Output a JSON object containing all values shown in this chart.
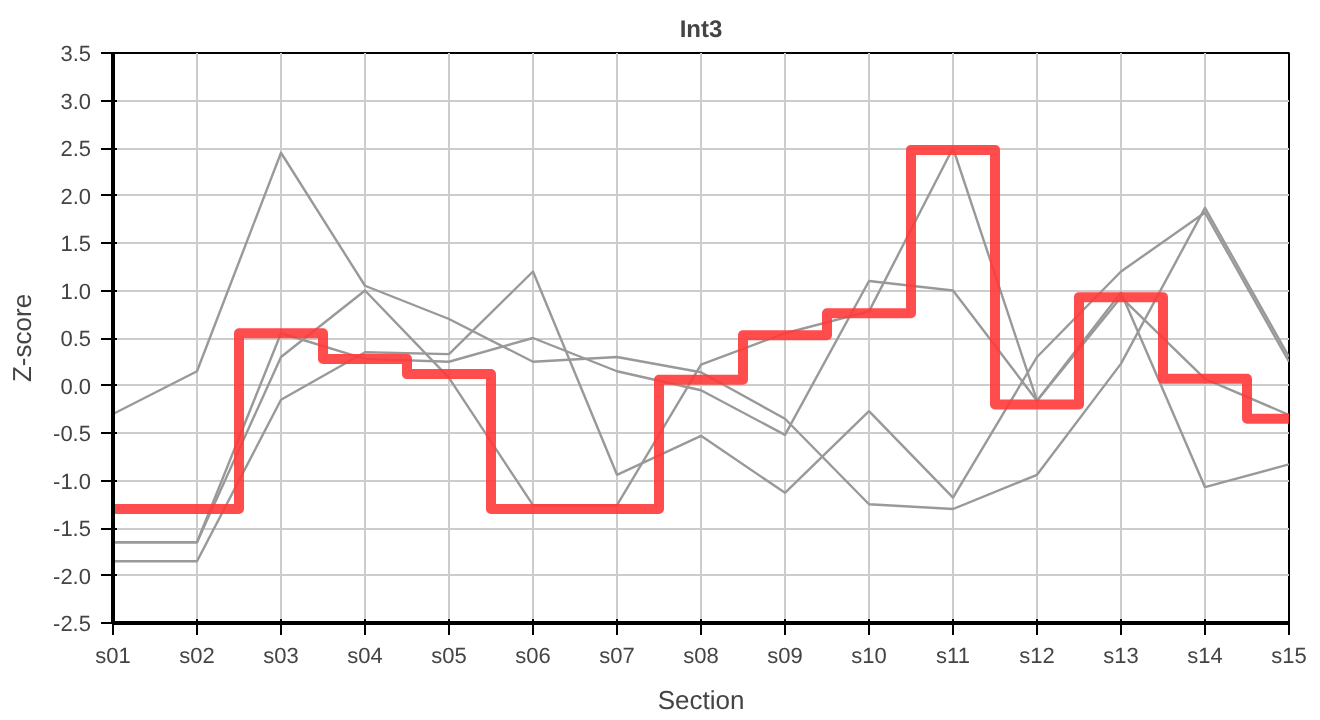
{
  "chart_data": {
    "type": "line",
    "title": "Int3",
    "xlabel": "Section",
    "ylabel": "Z-score",
    "categories": [
      "s01",
      "s02",
      "s03",
      "s04",
      "s05",
      "s06",
      "s07",
      "s08",
      "s09",
      "s10",
      "s11",
      "s12",
      "s13",
      "s14",
      "s15"
    ],
    "ylim": [
      -2.5,
      3.5
    ],
    "yticks": [
      -2.5,
      {
        "value": -2,
        "label": "-2.0"
      },
      -1.5,
      {
        "value": -1,
        "label": "-1.0"
      },
      -0.5,
      {
        "value": 0,
        "label": "0.0"
      },
      0.5,
      {
        "value": 1,
        "label": "1.0"
      },
      1.5,
      {
        "value": 2,
        "label": "2.0"
      },
      2.5,
      {
        "value": 3,
        "label": "3.0"
      },
      3.5
    ],
    "grid": true,
    "marker": "none",
    "series": [
      {
        "color": "#999999",
        "values": [
          -0.3,
          0.15,
          2.45,
          1.05,
          0.7,
          0.25,
          0.3,
          0.14,
          -0.35,
          -1.25,
          -1.3,
          -0.94,
          0.23,
          1.87,
          0.3
        ]
      },
      {
        "color": "#999999",
        "values": [
          -1.65,
          -1.65,
          0.55,
          0.28,
          0.25,
          0.5,
          0.15,
          -0.05,
          -0.52,
          1.1,
          1.0,
          -0.16,
          0.93,
          0.07,
          -0.31
        ]
      },
      {
        "color": "#999999",
        "values": [
          -1.65,
          -1.65,
          0.3,
          1.0,
          0.08,
          -1.26,
          -1.26,
          0.22,
          0.55,
          0.78,
          2.5,
          -0.16,
          0.98,
          -1.07,
          -0.83
        ]
      },
      {
        "color": "#999999",
        "values": [
          -1.85,
          -1.85,
          -0.15,
          0.35,
          0.33,
          1.2,
          -0.94,
          -0.53,
          -1.13,
          -0.27,
          -1.18,
          0.3,
          1.2,
          1.82,
          0.25
        ]
      },
      {
        "type": "step",
        "color": "#ff3838",
        "values": [
          -1.3,
          -1.3,
          0.55,
          0.28,
          0.12,
          -1.3,
          -1.3,
          0.06,
          0.53,
          0.76,
          2.48,
          -0.2,
          0.93,
          0.07,
          -0.35
        ]
      }
    ]
  }
}
